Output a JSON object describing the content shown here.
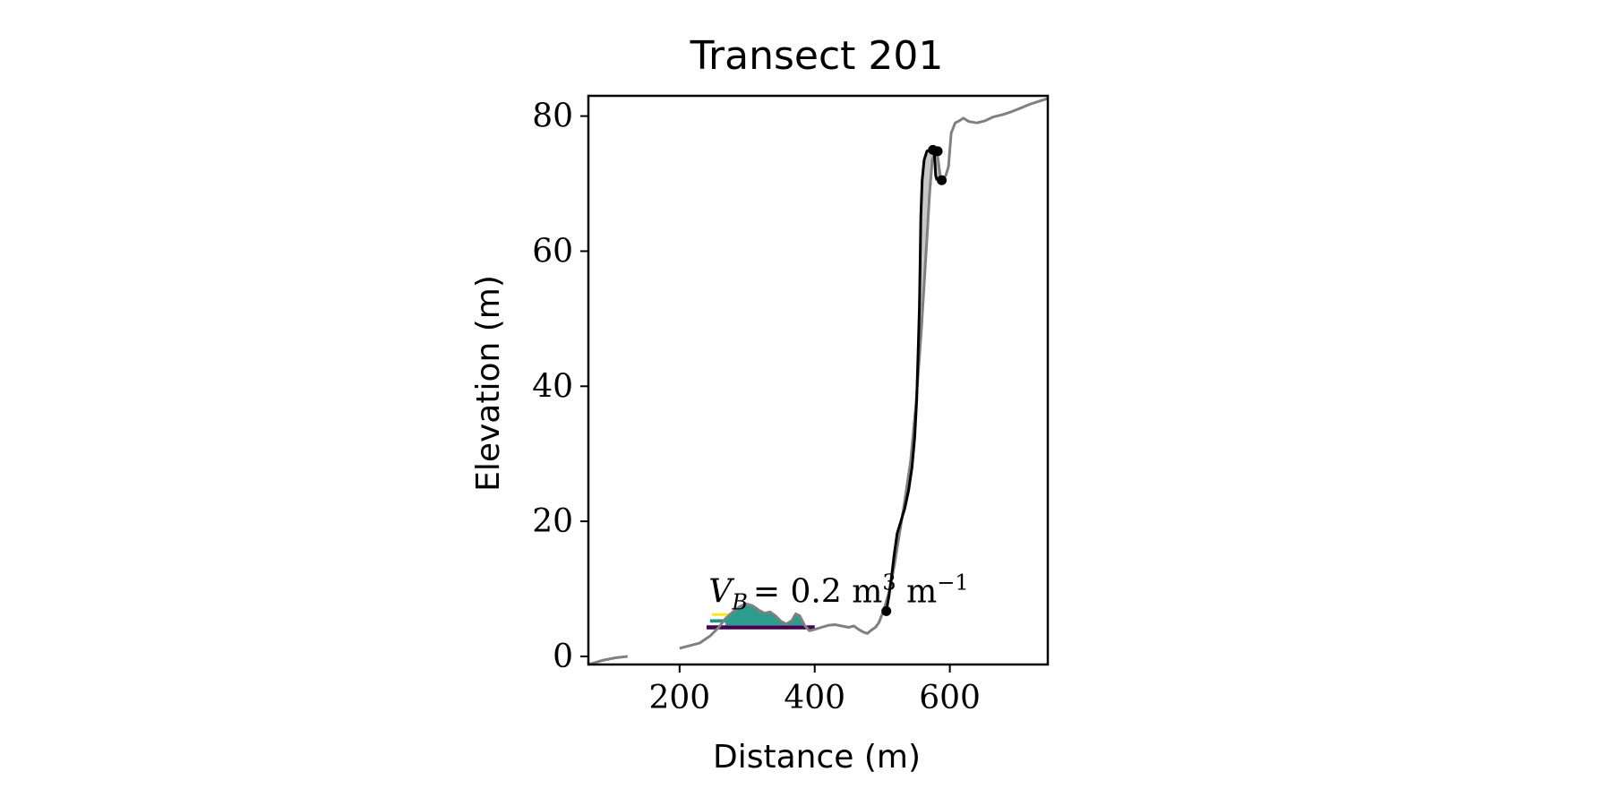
{
  "chart_data": {
    "type": "line",
    "title": "Transect 201",
    "xlabel": "Distance (m)",
    "ylabel": "Elevation (m)",
    "xlim": [
      65,
      745
    ],
    "ylim": [
      -1.2,
      83
    ],
    "xticks": [
      200,
      400,
      600
    ],
    "yticks": [
      0,
      20,
      40,
      60,
      80
    ],
    "grid": false,
    "legend": "none",
    "annotation": {
      "prefix": "V",
      "subscript": "B",
      "text": "= 0.2 m",
      "exp1": "3",
      "mid": " m",
      "exp2": "−1",
      "x": 243,
      "y": 8
    },
    "profile": {
      "name": "",
      "color": "#808080",
      "segments": [
        [
          [
            65,
            -1.2
          ],
          [
            85,
            -0.6
          ],
          [
            105,
            -0.2
          ],
          [
            123,
            0.0
          ]
        ],
        [
          [
            200,
            1.2
          ],
          [
            215,
            1.6
          ],
          [
            230,
            2.0
          ],
          [
            245,
            3.0
          ],
          [
            258,
            4.3
          ],
          [
            268,
            5.6
          ],
          [
            278,
            6.5
          ],
          [
            288,
            7.3
          ],
          [
            298,
            7.8
          ],
          [
            308,
            7.5
          ],
          [
            318,
            6.8
          ],
          [
            326,
            6.4
          ],
          [
            334,
            6.6
          ],
          [
            342,
            6.0
          ],
          [
            350,
            5.2
          ],
          [
            358,
            4.8
          ],
          [
            366,
            5.3
          ],
          [
            372,
            6.3
          ],
          [
            378,
            6.0
          ],
          [
            385,
            4.6
          ],
          [
            392,
            3.8
          ],
          [
            400,
            4.0
          ],
          [
            410,
            4.3
          ],
          [
            420,
            4.6
          ],
          [
            430,
            4.7
          ],
          [
            440,
            4.5
          ],
          [
            450,
            4.3
          ],
          [
            458,
            4.5
          ],
          [
            465,
            4.0
          ],
          [
            472,
            3.6
          ],
          [
            478,
            3.4
          ],
          [
            484,
            3.9
          ],
          [
            490,
            4.3
          ],
          [
            495,
            5.0
          ],
          [
            502,
            6.8
          ],
          [
            510,
            9.5
          ],
          [
            518,
            13.5
          ],
          [
            526,
            18.5
          ],
          [
            534,
            23.5
          ],
          [
            542,
            29.0
          ],
          [
            550,
            37.5
          ],
          [
            558,
            48.5
          ],
          [
            565,
            60.0
          ],
          [
            570,
            68.5
          ],
          [
            574,
            73.5
          ],
          [
            578,
            74.6
          ],
          [
            582,
            74.0
          ],
          [
            586,
            71.0
          ],
          [
            590,
            70.8
          ],
          [
            594,
            71.2
          ],
          [
            598,
            72.5
          ],
          [
            602,
            77.5
          ],
          [
            608,
            79.0
          ],
          [
            614,
            79.3
          ],
          [
            620,
            79.7
          ],
          [
            628,
            79.2
          ],
          [
            640,
            79.0
          ],
          [
            652,
            79.3
          ],
          [
            665,
            79.9
          ],
          [
            678,
            80.2
          ],
          [
            690,
            80.6
          ],
          [
            705,
            81.2
          ],
          [
            720,
            81.8
          ],
          [
            735,
            82.3
          ],
          [
            745,
            82.6
          ]
        ]
      ]
    },
    "fit_line": {
      "name": "",
      "color": "#000000",
      "points": [
        [
          506,
          6.7
        ],
        [
          510,
          9.0
        ],
        [
          514,
          12.0
        ],
        [
          518,
          15.3
        ],
        [
          522,
          18.2
        ],
        [
          527,
          19.8
        ],
        [
          533,
          21.8
        ],
        [
          539,
          24.6
        ],
        [
          544,
          28.0
        ],
        [
          548,
          32.5
        ],
        [
          551,
          38.0
        ],
        [
          553,
          45.0
        ],
        [
          555,
          52.0
        ],
        [
          556,
          58.0
        ],
        [
          557,
          65.0
        ],
        [
          559,
          70.5
        ],
        [
          562,
          73.5
        ],
        [
          566,
          74.8
        ],
        [
          571,
          75.0
        ],
        [
          575,
          74.9
        ],
        [
          577,
          74.6
        ],
        [
          579,
          71.2
        ],
        [
          581,
          70.5
        ]
      ],
      "markers": [
        [
          506,
          6.7
        ],
        [
          575,
          75.0
        ],
        [
          582,
          74.8
        ],
        [
          588,
          70.5
        ]
      ]
    },
    "bands": [
      {
        "color": "#440154",
        "x0": 240,
        "x1": 400,
        "y_base": 4.0,
        "thickness": 0.6
      },
      {
        "color": "#21918c",
        "x0": 245,
        "x1": 340,
        "y_base": 5.0,
        "thickness": 0.5
      },
      {
        "color": "#fde725",
        "x0": 248,
        "x1": 290,
        "y_base": 6.0,
        "thickness": 0.4
      }
    ],
    "fill_regions": [
      {
        "name": "beach-fill",
        "color": "#2a9d8f",
        "top_series": [
          [
            268,
            5.6
          ],
          [
            278,
            6.5
          ],
          [
            288,
            7.3
          ],
          [
            298,
            7.8
          ],
          [
            308,
            7.5
          ],
          [
            318,
            6.8
          ],
          [
            326,
            6.4
          ],
          [
            334,
            6.6
          ],
          [
            342,
            6.0
          ],
          [
            350,
            5.2
          ],
          [
            358,
            4.8
          ],
          [
            366,
            5.3
          ],
          [
            372,
            6.3
          ],
          [
            378,
            6.0
          ],
          [
            385,
            4.6
          ]
        ],
        "base": 4.6
      },
      {
        "name": "cliff-fill",
        "color": "#c8c8c8",
        "upper": [
          [
            502,
            6.8
          ],
          [
            510,
            9.5
          ],
          [
            518,
            13.5
          ],
          [
            526,
            18.5
          ],
          [
            534,
            23.5
          ],
          [
            542,
            29.0
          ],
          [
            550,
            37.5
          ],
          [
            558,
            48.5
          ],
          [
            565,
            60.0
          ],
          [
            570,
            68.5
          ],
          [
            574,
            73.5
          ],
          [
            578,
            74.6
          ],
          [
            582,
            74.0
          ],
          [
            586,
            71.0
          ],
          [
            590,
            70.8
          ]
        ],
        "lower": [
          [
            590,
            70.8
          ],
          [
            581,
            70.5
          ],
          [
            579,
            71.2
          ],
          [
            577,
            74.6
          ],
          [
            575,
            74.9
          ],
          [
            571,
            75.0
          ],
          [
            566,
            74.8
          ],
          [
            562,
            73.5
          ],
          [
            559,
            70.5
          ],
          [
            557,
            65.0
          ],
          [
            556,
            58.0
          ],
          [
            555,
            52.0
          ],
          [
            553,
            45.0
          ],
          [
            551,
            38.0
          ],
          [
            548,
            32.5
          ],
          [
            544,
            28.0
          ],
          [
            539,
            24.6
          ],
          [
            533,
            21.8
          ],
          [
            527,
            19.8
          ],
          [
            522,
            18.2
          ],
          [
            518,
            15.3
          ],
          [
            514,
            12.0
          ],
          [
            510,
            9.0
          ],
          [
            506,
            6.7
          ]
        ]
      }
    ]
  }
}
